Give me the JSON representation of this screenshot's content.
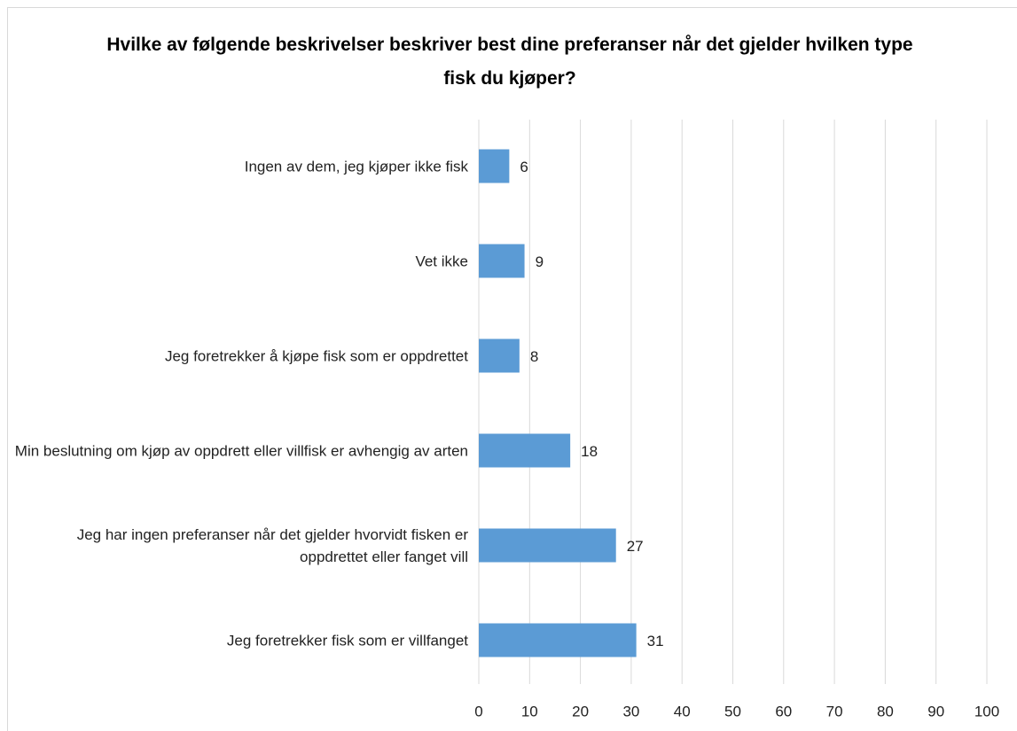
{
  "chart_data": {
    "type": "bar",
    "orientation": "horizontal",
    "title": "Hvilke av følgende beskrivelser beskriver best dine preferanser når det gjelder hvilken type fisk du kjøper?",
    "categories": [
      "Ingen av dem, jeg kjøper ikke fisk",
      "Vet ikke",
      "Jeg foretrekker å kjøpe fisk som er oppdrettet",
      "Min beslutning om kjøp av oppdrett eller villfisk er avhengig av arten",
      "Jeg har ingen preferanser når det gjelder hvorvidt fisken er oppdrettet eller fanget vill",
      "Jeg foretrekker fisk som er villfanget"
    ],
    "values": [
      6,
      9,
      8,
      18,
      27,
      31
    ],
    "color": "#5b9bd5",
    "xlim": [
      0,
      100
    ],
    "xticks": [
      0,
      10,
      20,
      30,
      40,
      50,
      60,
      70,
      80,
      90,
      100
    ],
    "grid": true
  }
}
